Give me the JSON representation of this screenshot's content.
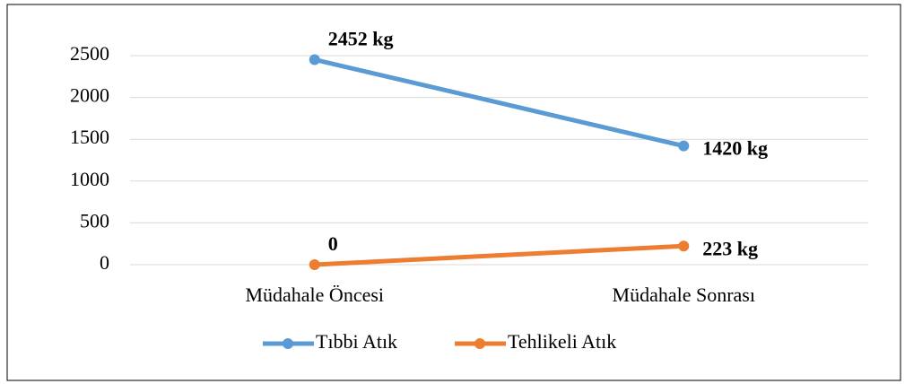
{
  "chart_data": {
    "type": "line",
    "categories": [
      "Müdahale Öncesi",
      "Müdahale Sonrası"
    ],
    "series": [
      {
        "name": "Tıbbi Atık",
        "color": "#5b9bd5",
        "values": [
          2452,
          1420
        ],
        "value_labels": [
          "2452 kg",
          "1420 kg"
        ]
      },
      {
        "name": "Tehlikeli Atık",
        "color": "#ed7d31",
        "values": [
          0,
          223
        ],
        "value_labels": [
          "0",
          "223 kg"
        ]
      }
    ],
    "ylim": [
      0,
      2500
    ],
    "yticks": [
      0,
      500,
      1000,
      1500,
      2000,
      2500
    ],
    "grid": true,
    "legend": "bottom"
  }
}
